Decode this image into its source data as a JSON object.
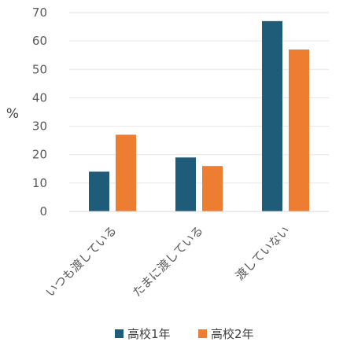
{
  "chart_data": {
    "type": "bar",
    "categories": [
      "いつも渡している",
      "たまに渡している",
      "渡していない"
    ],
    "series": [
      {
        "name": "高校1年",
        "values": [
          14,
          19,
          67
        ],
        "color": "#1f5c7a"
      },
      {
        "name": "高校2年",
        "values": [
          27,
          16,
          57
        ],
        "color": "#ed7d31"
      }
    ],
    "ylabel": "%",
    "ylim": [
      0,
      70
    ],
    "yticks": [
      0,
      10,
      20,
      30,
      40,
      50,
      60,
      70
    ],
    "grid": true,
    "legend_position": "bottom"
  }
}
